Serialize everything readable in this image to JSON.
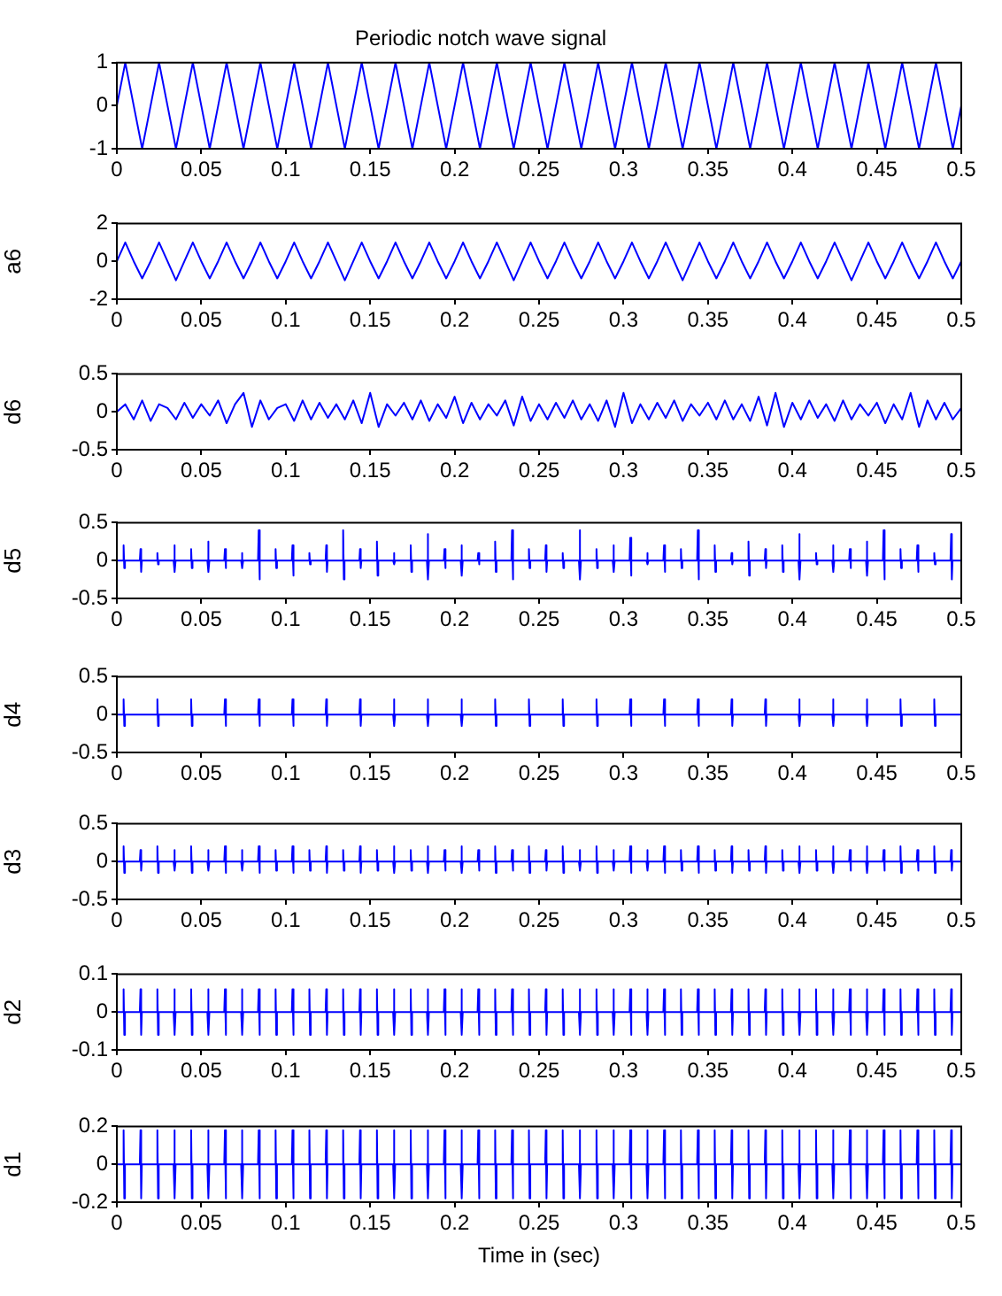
{
  "chart_data": [
    {
      "type": "line",
      "title": "Periodic notch wave signal",
      "color": "#0000ff",
      "xlim": [
        0,
        0.5
      ],
      "xticks": [
        0,
        0.05,
        0.1,
        0.15,
        0.2,
        0.25,
        0.3,
        0.35,
        0.4,
        0.45,
        0.5
      ],
      "ylim": [
        -1,
        1
      ],
      "yticks": [
        -1,
        0,
        1
      ],
      "x": [
        0,
        0.005,
        0.01,
        0.015,
        0.02,
        0.025,
        0.03,
        0.035,
        0.04,
        0.045,
        0.05,
        0.055,
        0.06,
        0.065,
        0.07,
        0.075,
        0.08,
        0.085,
        0.09,
        0.095,
        0.1,
        0.105,
        0.11,
        0.115,
        0.12,
        0.125,
        0.13,
        0.135,
        0.14,
        0.145,
        0.15,
        0.155,
        0.16,
        0.165,
        0.17,
        0.175,
        0.18,
        0.185,
        0.19,
        0.195,
        0.2,
        0.205,
        0.21,
        0.215,
        0.22,
        0.225,
        0.23,
        0.235,
        0.24,
        0.245,
        0.25,
        0.255,
        0.26,
        0.265,
        0.27,
        0.275,
        0.28,
        0.285,
        0.29,
        0.295,
        0.3,
        0.305,
        0.31,
        0.315,
        0.32,
        0.325,
        0.33,
        0.335,
        0.34,
        0.345,
        0.35,
        0.355,
        0.36,
        0.365,
        0.37,
        0.375,
        0.38,
        0.385,
        0.39,
        0.395,
        0.4,
        0.405,
        0.41,
        0.415,
        0.42,
        0.425,
        0.43,
        0.435,
        0.44,
        0.445,
        0.45,
        0.455,
        0.46,
        0.465,
        0.47,
        0.475,
        0.48,
        0.485,
        0.49,
        0.495,
        0.5
      ],
      "values": [
        0,
        1,
        0,
        -1,
        0,
        1,
        0,
        -1,
        0,
        1,
        0,
        -1,
        0,
        1,
        0,
        -1,
        0,
        1,
        0,
        -1,
        0,
        1,
        0,
        -1,
        0,
        1,
        0,
        -1,
        0,
        1,
        0,
        -1,
        0,
        1,
        0,
        -1,
        0,
        1,
        0,
        -1,
        0,
        1,
        0,
        -1,
        0,
        1,
        0,
        -1,
        0,
        1,
        0,
        -1,
        0,
        1,
        0,
        -1,
        0,
        1,
        0,
        -1,
        0,
        1,
        0,
        -1,
        0,
        1,
        0,
        -1,
        0,
        1,
        0,
        -1,
        0,
        1,
        0,
        -1,
        0,
        1,
        0,
        -1,
        0,
        1,
        0,
        -1,
        0,
        1,
        0,
        -1,
        0,
        1,
        0,
        -1,
        0,
        1,
        0,
        -1,
        0,
        1,
        0,
        -1,
        0
      ]
    },
    {
      "type": "line",
      "ylabel": "a6",
      "color": "#0000ff",
      "xlim": [
        0,
        0.5
      ],
      "xticks": [
        0,
        0.05,
        0.1,
        0.15,
        0.2,
        0.25,
        0.3,
        0.35,
        0.4,
        0.45,
        0.5
      ],
      "ylim": [
        -2,
        2
      ],
      "yticks": [
        -2,
        0,
        2
      ],
      "x": [
        0,
        0.005,
        0.01,
        0.015,
        0.02,
        0.025,
        0.03,
        0.035,
        0.04,
        0.045,
        0.05,
        0.055,
        0.06,
        0.065,
        0.07,
        0.075,
        0.08,
        0.085,
        0.09,
        0.095,
        0.1,
        0.105,
        0.11,
        0.115,
        0.12,
        0.125,
        0.13,
        0.135,
        0.14,
        0.145,
        0.15,
        0.155,
        0.16,
        0.165,
        0.17,
        0.175,
        0.18,
        0.185,
        0.19,
        0.195,
        0.2,
        0.205,
        0.21,
        0.215,
        0.22,
        0.225,
        0.23,
        0.235,
        0.24,
        0.245,
        0.25,
        0.255,
        0.26,
        0.265,
        0.27,
        0.275,
        0.28,
        0.285,
        0.29,
        0.295,
        0.3,
        0.305,
        0.31,
        0.315,
        0.32,
        0.325,
        0.33,
        0.335,
        0.34,
        0.345,
        0.35,
        0.355,
        0.36,
        0.365,
        0.37,
        0.375,
        0.38,
        0.385,
        0.39,
        0.395,
        0.4,
        0.405,
        0.41,
        0.415,
        0.42,
        0.425,
        0.43,
        0.435,
        0.44,
        0.445,
        0.45,
        0.455,
        0.46,
        0.465,
        0.47,
        0.475,
        0.48,
        0.485,
        0.49,
        0.495,
        0.5
      ],
      "values": [
        0,
        1,
        0,
        -0.9,
        0,
        1,
        0,
        -1,
        0,
        1,
        0,
        -0.9,
        0,
        1,
        0,
        -0.9,
        0,
        1,
        0,
        -0.9,
        0,
        1,
        0,
        -0.9,
        0,
        1,
        0,
        -1,
        0,
        1,
        0,
        -0.9,
        0,
        1,
        0,
        -0.9,
        0,
        1,
        0,
        -0.9,
        0,
        1,
        0,
        -0.9,
        0,
        1,
        0,
        -1,
        0,
        1,
        0,
        -0.9,
        0,
        1,
        0,
        -0.9,
        0,
        1,
        0,
        -0.9,
        0,
        1,
        0,
        -0.9,
        0,
        1,
        0,
        -1,
        0,
        1,
        0,
        -0.9,
        0,
        1,
        0,
        -0.9,
        0,
        1,
        0,
        -0.9,
        0,
        1,
        0,
        -0.9,
        0,
        1,
        0,
        -1,
        0,
        1,
        0,
        -0.9,
        0,
        1,
        0,
        -0.9,
        0,
        1,
        0,
        -0.9,
        0
      ]
    },
    {
      "type": "line",
      "ylabel": "d6",
      "color": "#0000ff",
      "xlim": [
        0,
        0.5
      ],
      "xticks": [
        0,
        0.05,
        0.1,
        0.15,
        0.2,
        0.25,
        0.3,
        0.35,
        0.4,
        0.45,
        0.5
      ],
      "ylim": [
        -0.5,
        0.5
      ],
      "yticks": [
        -0.5,
        0,
        0.5
      ],
      "x": [
        0,
        0.005,
        0.01,
        0.015,
        0.02,
        0.025,
        0.03,
        0.035,
        0.04,
        0.045,
        0.05,
        0.055,
        0.06,
        0.065,
        0.07,
        0.075,
        0.08,
        0.085,
        0.09,
        0.095,
        0.1,
        0.105,
        0.11,
        0.115,
        0.12,
        0.125,
        0.13,
        0.135,
        0.14,
        0.145,
        0.15,
        0.155,
        0.16,
        0.165,
        0.17,
        0.175,
        0.18,
        0.185,
        0.19,
        0.195,
        0.2,
        0.205,
        0.21,
        0.215,
        0.22,
        0.225,
        0.23,
        0.235,
        0.24,
        0.245,
        0.25,
        0.255,
        0.26,
        0.265,
        0.27,
        0.275,
        0.28,
        0.285,
        0.29,
        0.295,
        0.3,
        0.305,
        0.31,
        0.315,
        0.32,
        0.325,
        0.33,
        0.335,
        0.34,
        0.345,
        0.35,
        0.355,
        0.36,
        0.365,
        0.37,
        0.375,
        0.38,
        0.385,
        0.39,
        0.395,
        0.4,
        0.405,
        0.41,
        0.415,
        0.42,
        0.425,
        0.43,
        0.435,
        0.44,
        0.445,
        0.45,
        0.455,
        0.46,
        0.465,
        0.47,
        0.475,
        0.48,
        0.485,
        0.49,
        0.495,
        0.5
      ],
      "values": [
        0,
        0.1,
        -0.1,
        0.15,
        -0.12,
        0.1,
        0.05,
        -0.1,
        0.12,
        -0.08,
        0.1,
        -0.05,
        0.15,
        -0.15,
        0.1,
        0.25,
        -0.2,
        0.15,
        -0.1,
        0.05,
        0.1,
        -0.12,
        0.15,
        -0.1,
        0.12,
        -0.08,
        0.1,
        -0.1,
        0.15,
        -0.15,
        0.25,
        -0.2,
        0.1,
        -0.05,
        0.12,
        -0.1,
        0.15,
        -0.12,
        0.1,
        -0.08,
        0.2,
        -0.15,
        0.12,
        -0.1,
        0.1,
        -0.05,
        0.15,
        -0.18,
        0.2,
        -0.12,
        0.1,
        -0.1,
        0.12,
        -0.08,
        0.15,
        -0.1,
        0.1,
        -0.12,
        0.15,
        -0.2,
        0.25,
        -0.15,
        0.1,
        -0.1,
        0.12,
        -0.08,
        0.15,
        -0.12,
        0.1,
        -0.05,
        0.12,
        -0.1,
        0.15,
        -0.1,
        0.1,
        -0.12,
        0.2,
        -0.18,
        0.25,
        -0.2,
        0.12,
        -0.1,
        0.15,
        -0.08,
        0.1,
        -0.12,
        0.15,
        -0.1,
        0.1,
        -0.05,
        0.12,
        -0.15,
        0.1,
        -0.1,
        0.25,
        -0.2,
        0.15,
        -0.1,
        0.12,
        -0.1,
        0.05
      ]
    },
    {
      "type": "line",
      "ylabel": "d5",
      "color": "#0000ff",
      "xlim": [
        0,
        0.5
      ],
      "xticks": [
        0,
        0.05,
        0.1,
        0.15,
        0.2,
        0.25,
        0.3,
        0.35,
        0.4,
        0.45,
        0.5
      ],
      "ylim": [
        -0.5,
        0.5
      ],
      "yticks": [
        -0.5,
        0,
        0.5
      ],
      "x": [
        0,
        0.0036,
        0.004,
        0.0044,
        0.0048,
        0.0136,
        0.014,
        0.0144,
        0.0148,
        0.0236,
        0.024,
        0.0244,
        0.0248,
        0.0336,
        0.034,
        0.0344,
        0.0348,
        0.0436,
        0.044,
        0.0444,
        0.0448,
        0.0536,
        0.054,
        0.0544,
        0.0548,
        0.0636,
        0.064,
        0.0644,
        0.0648,
        0.0736,
        0.074,
        0.0744,
        0.0748,
        0.0836,
        0.084,
        0.0844,
        0.0848,
        0.0936,
        0.094,
        0.0944,
        0.0948,
        0.1036,
        0.104,
        0.1044,
        0.1048,
        0.1136,
        0.114,
        0.1144,
        0.1148,
        0.1236,
        0.124,
        0.1244,
        0.1248,
        0.1336,
        0.134,
        0.1344,
        0.1348,
        0.1436,
        0.144,
        0.1444,
        0.1448,
        0.1536,
        0.154,
        0.1544,
        0.1548,
        0.1636,
        0.164,
        0.1644,
        0.1648,
        0.1736,
        0.174,
        0.1744,
        0.1748,
        0.1836,
        0.184,
        0.1844,
        0.1848,
        0.1936,
        0.194,
        0.1944,
        0.1948,
        0.2036,
        0.204,
        0.2044,
        0.2048,
        0.2136,
        0.214,
        0.2144,
        0.2148,
        0.2236,
        0.224,
        0.2244,
        0.2248,
        0.2336,
        0.234,
        0.2344,
        0.2348,
        0.2436,
        0.244,
        0.2444,
        0.2448,
        0.2536,
        0.254,
        0.2544,
        0.2548,
        0.2636,
        0.264,
        0.2644,
        0.2648,
        0.2736,
        0.274,
        0.2744,
        0.2748,
        0.2836,
        0.284,
        0.2844,
        0.2848,
        0.2936,
        0.294,
        0.2944,
        0.2948,
        0.3036,
        0.304,
        0.3044,
        0.3048,
        0.3136,
        0.314,
        0.3144,
        0.3148,
        0.3236,
        0.324,
        0.3244,
        0.3248,
        0.3336,
        0.334,
        0.3344,
        0.3348,
        0.3436,
        0.344,
        0.3444,
        0.3448,
        0.3536,
        0.354,
        0.3544,
        0.3548,
        0.3636,
        0.364,
        0.3644,
        0.3648,
        0.3736,
        0.374,
        0.3744,
        0.3748,
        0.3836,
        0.384,
        0.3844,
        0.3848,
        0.3936,
        0.394,
        0.3944,
        0.3948,
        0.4036,
        0.404,
        0.4044,
        0.4048,
        0.4136,
        0.414,
        0.4144,
        0.4148,
        0.4236,
        0.424,
        0.4244,
        0.4248,
        0.4336,
        0.434,
        0.4344,
        0.4348,
        0.4436,
        0.444,
        0.4444,
        0.4448,
        0.4536,
        0.454,
        0.4544,
        0.4548,
        0.4636,
        0.464,
        0.4644,
        0.4648,
        0.4736,
        0.474,
        0.4744,
        0.4748,
        0.4836,
        0.484,
        0.4844,
        0.4848,
        0.4936,
        0.494,
        0.4944,
        0.4948,
        0.5
      ],
      "values": [
        0,
        0,
        0.2,
        -0.1,
        0,
        0,
        0.15,
        -0.15,
        0,
        0,
        0.1,
        -0.05,
        0,
        0,
        0.2,
        -0.15,
        0,
        0,
        0.15,
        -0.1,
        0,
        0,
        0.25,
        -0.15,
        0,
        0,
        0.15,
        -0.1,
        0,
        0,
        0.1,
        -0.1,
        0,
        0,
        0.4,
        -0.25,
        0,
        0,
        0.15,
        -0.1,
        0,
        0,
        0.2,
        -0.2,
        0,
        0,
        0.1,
        -0.05,
        0,
        0,
        0.2,
        -0.15,
        0,
        0,
        0.4,
        -0.25,
        0,
        0,
        0.15,
        -0.1,
        0,
        0,
        0.25,
        -0.2,
        0,
        0,
        0.1,
        -0.05,
        0,
        0,
        0.2,
        -0.15,
        0,
        0,
        0.35,
        -0.25,
        0,
        0,
        0.15,
        -0.1,
        0,
        0,
        0.2,
        -0.2,
        0,
        0,
        0.1,
        -0.05,
        0,
        0,
        0.25,
        -0.15,
        0,
        0,
        0.4,
        -0.25,
        0,
        0,
        0.15,
        -0.1,
        0,
        0,
        0.2,
        -0.15,
        0,
        0,
        0.1,
        -0.1,
        0,
        0,
        0.4,
        -0.25,
        0,
        0,
        0.15,
        -0.1,
        0,
        0,
        0.2,
        -0.15,
        0,
        0,
        0.3,
        -0.2,
        0,
        0,
        0.1,
        -0.05,
        0,
        0,
        0.2,
        -0.15,
        0,
        0,
        0.15,
        -0.1,
        0,
        0,
        0.4,
        -0.25,
        0,
        0,
        0.2,
        -0.15,
        0,
        0,
        0.1,
        -0.05,
        0,
        0,
        0.25,
        -0.2,
        0,
        0,
        0.15,
        -0.1,
        0,
        0,
        0.2,
        -0.15,
        0,
        0,
        0.35,
        -0.25,
        0,
        0,
        0.1,
        -0.05,
        0,
        0,
        0.2,
        -0.15,
        0,
        0,
        0.15,
        -0.1,
        0,
        0,
        0.25,
        -0.2,
        0,
        0,
        0.4,
        -0.25,
        0,
        0,
        0.15,
        -0.1,
        0,
        0,
        0.2,
        -0.15,
        0,
        0,
        0.1,
        -0.05,
        0,
        0,
        0.35,
        -0.25,
        0,
        0
      ]
    },
    {
      "type": "line",
      "ylabel": "d4",
      "color": "#0000ff",
      "xlim": [
        0,
        0.5
      ],
      "xticks": [
        0,
        0.05,
        0.1,
        0.15,
        0.2,
        0.25,
        0.3,
        0.35,
        0.4,
        0.45,
        0.5
      ],
      "ylim": [
        -0.5,
        0.5
      ],
      "yticks": [
        -0.5,
        0,
        0.5
      ],
      "x": [
        0,
        0.0036,
        0.004,
        0.0044,
        0.0048,
        0.0236,
        0.024,
        0.0244,
        0.0248,
        0.0436,
        0.044,
        0.0444,
        0.0448,
        0.0636,
        0.064,
        0.0644,
        0.0648,
        0.0836,
        0.084,
        0.0844,
        0.0848,
        0.1036,
        0.104,
        0.1044,
        0.1048,
        0.1236,
        0.124,
        0.1244,
        0.1248,
        0.1436,
        0.144,
        0.1444,
        0.1448,
        0.1636,
        0.164,
        0.1644,
        0.1648,
        0.1836,
        0.184,
        0.1844,
        0.1848,
        0.2036,
        0.204,
        0.2044,
        0.2048,
        0.2236,
        0.224,
        0.2244,
        0.2248,
        0.2436,
        0.244,
        0.2444,
        0.2448,
        0.2636,
        0.264,
        0.2644,
        0.2648,
        0.2836,
        0.284,
        0.2844,
        0.2848,
        0.3036,
        0.304,
        0.3044,
        0.3048,
        0.3236,
        0.324,
        0.3244,
        0.3248,
        0.3436,
        0.344,
        0.3444,
        0.3448,
        0.3636,
        0.364,
        0.3644,
        0.3648,
        0.3836,
        0.384,
        0.3844,
        0.3848,
        0.4036,
        0.404,
        0.4044,
        0.4048,
        0.4236,
        0.424,
        0.4244,
        0.4248,
        0.4436,
        0.444,
        0.4444,
        0.4448,
        0.4636,
        0.464,
        0.4644,
        0.4648,
        0.4836,
        0.484,
        0.4844,
        0.4848,
        0.5
      ],
      "values": [
        0,
        0,
        0.2,
        -0.15,
        0,
        0,
        0.2,
        -0.15,
        0,
        0,
        0.2,
        -0.15,
        0,
        0,
        0.2,
        -0.15,
        0,
        0,
        0.2,
        -0.15,
        0,
        0,
        0.2,
        -0.15,
        0,
        0,
        0.2,
        -0.15,
        0,
        0,
        0.2,
        -0.15,
        0,
        0,
        0.2,
        -0.15,
        0,
        0,
        0.2,
        -0.15,
        0,
        0,
        0.2,
        -0.15,
        0,
        0,
        0.2,
        -0.15,
        0,
        0,
        0.2,
        -0.15,
        0,
        0,
        0.2,
        -0.15,
        0,
        0,
        0.2,
        -0.15,
        0,
        0,
        0.2,
        -0.15,
        0,
        0,
        0.2,
        -0.15,
        0,
        0,
        0.2,
        -0.15,
        0,
        0,
        0.2,
        -0.15,
        0,
        0,
        0.2,
        -0.15,
        0,
        0,
        0.2,
        -0.15,
        0,
        0,
        0.2,
        -0.15,
        0,
        0,
        0.2,
        -0.15,
        0,
        0,
        0.2,
        -0.15,
        0,
        0,
        0.2,
        -0.15,
        0,
        0
      ]
    },
    {
      "type": "line",
      "ylabel": "d3",
      "color": "#0000ff",
      "xlim": [
        0,
        0.5
      ],
      "xticks": [
        0,
        0.05,
        0.1,
        0.15,
        0.2,
        0.25,
        0.3,
        0.35,
        0.4,
        0.45,
        0.5
      ],
      "ylim": [
        -0.5,
        0.5
      ],
      "yticks": [
        -0.5,
        0,
        0.5
      ],
      "x": [
        0,
        0.0036,
        0.004,
        0.0044,
        0.0048,
        0.0136,
        0.014,
        0.0144,
        0.0148,
        0.0236,
        0.024,
        0.0244,
        0.0248,
        0.0336,
        0.034,
        0.0344,
        0.0348,
        0.0436,
        0.044,
        0.0444,
        0.0448,
        0.0536,
        0.054,
        0.0544,
        0.0548,
        0.0636,
        0.064,
        0.0644,
        0.0648,
        0.0736,
        0.074,
        0.0744,
        0.0748,
        0.0836,
        0.084,
        0.0844,
        0.0848,
        0.0936,
        0.094,
        0.0944,
        0.0948,
        0.1036,
        0.104,
        0.1044,
        0.1048,
        0.1136,
        0.114,
        0.1144,
        0.1148,
        0.1236,
        0.124,
        0.1244,
        0.1248,
        0.1336,
        0.134,
        0.1344,
        0.1348,
        0.1436,
        0.144,
        0.1444,
        0.1448,
        0.1536,
        0.154,
        0.1544,
        0.1548,
        0.1636,
        0.164,
        0.1644,
        0.1648,
        0.1736,
        0.174,
        0.1744,
        0.1748,
        0.1836,
        0.184,
        0.1844,
        0.1848,
        0.1936,
        0.194,
        0.1944,
        0.1948,
        0.2036,
        0.204,
        0.2044,
        0.2048,
        0.2136,
        0.214,
        0.2144,
        0.2148,
        0.2236,
        0.224,
        0.2244,
        0.2248,
        0.2336,
        0.234,
        0.2344,
        0.2348,
        0.2436,
        0.244,
        0.2444,
        0.2448,
        0.2536,
        0.254,
        0.2544,
        0.2548,
        0.2636,
        0.264,
        0.2644,
        0.2648,
        0.2736,
        0.274,
        0.2744,
        0.2748,
        0.2836,
        0.284,
        0.2844,
        0.2848,
        0.2936,
        0.294,
        0.2944,
        0.2948,
        0.3036,
        0.304,
        0.3044,
        0.3048,
        0.3136,
        0.314,
        0.3144,
        0.3148,
        0.3236,
        0.324,
        0.3244,
        0.3248,
        0.3336,
        0.334,
        0.3344,
        0.3348,
        0.3436,
        0.344,
        0.3444,
        0.3448,
        0.3536,
        0.354,
        0.3544,
        0.3548,
        0.3636,
        0.364,
        0.3644,
        0.3648,
        0.3736,
        0.374,
        0.3744,
        0.3748,
        0.3836,
        0.384,
        0.3844,
        0.3848,
        0.3936,
        0.394,
        0.3944,
        0.3948,
        0.4036,
        0.404,
        0.4044,
        0.4048,
        0.4136,
        0.414,
        0.4144,
        0.4148,
        0.4236,
        0.424,
        0.4244,
        0.4248,
        0.4336,
        0.434,
        0.4344,
        0.4348,
        0.4436,
        0.444,
        0.4444,
        0.4448,
        0.4536,
        0.454,
        0.4544,
        0.4548,
        0.4636,
        0.464,
        0.4644,
        0.4648,
        0.4736,
        0.474,
        0.4744,
        0.4748,
        0.4836,
        0.484,
        0.4844,
        0.4848,
        0.4936,
        0.494,
        0.4944,
        0.4948,
        0.5
      ],
      "values": [
        0,
        0,
        0.2,
        -0.15,
        0,
        0,
        0.15,
        -0.12,
        0,
        0,
        0.2,
        -0.15,
        0,
        0,
        0.15,
        -0.12,
        0,
        0,
        0.2,
        -0.15,
        0,
        0,
        0.15,
        -0.12,
        0,
        0,
        0.2,
        -0.15,
        0,
        0,
        0.15,
        -0.12,
        0,
        0,
        0.2,
        -0.15,
        0,
        0,
        0.15,
        -0.12,
        0,
        0,
        0.2,
        -0.15,
        0,
        0,
        0.15,
        -0.12,
        0,
        0,
        0.2,
        -0.15,
        0,
        0,
        0.15,
        -0.12,
        0,
        0,
        0.2,
        -0.15,
        0,
        0,
        0.15,
        -0.12,
        0,
        0,
        0.2,
        -0.15,
        0,
        0,
        0.15,
        -0.12,
        0,
        0,
        0.2,
        -0.15,
        0,
        0,
        0.15,
        -0.12,
        0,
        0,
        0.2,
        -0.15,
        0,
        0,
        0.15,
        -0.12,
        0,
        0,
        0.2,
        -0.15,
        0,
        0,
        0.15,
        -0.12,
        0,
        0,
        0.2,
        -0.15,
        0,
        0,
        0.15,
        -0.12,
        0,
        0,
        0.2,
        -0.15,
        0,
        0,
        0.15,
        -0.12,
        0,
        0,
        0.2,
        -0.15,
        0,
        0,
        0.15,
        -0.12,
        0,
        0,
        0.2,
        -0.15,
        0,
        0,
        0.15,
        -0.12,
        0,
        0,
        0.2,
        -0.15,
        0,
        0,
        0.15,
        -0.12,
        0,
        0,
        0.2,
        -0.15,
        0,
        0,
        0.15,
        -0.12,
        0,
        0,
        0.2,
        -0.15,
        0,
        0,
        0.15,
        -0.12,
        0,
        0,
        0.2,
        -0.15,
        0,
        0,
        0.15,
        -0.12,
        0,
        0,
        0.2,
        -0.15,
        0,
        0,
        0.15,
        -0.12,
        0,
        0,
        0.2,
        -0.15,
        0,
        0,
        0.15,
        -0.12,
        0,
        0,
        0.2,
        -0.15,
        0,
        0,
        0.15,
        -0.12,
        0,
        0,
        0.2,
        -0.15,
        0,
        0,
        0.15,
        -0.12,
        0,
        0,
        0.2,
        -0.15,
        0,
        0,
        0.15,
        -0.12,
        0,
        0
      ]
    },
    {
      "type": "line",
      "ylabel": "d2",
      "color": "#0000ff",
      "xlim": [
        0,
        0.5
      ],
      "xticks": [
        0,
        0.05,
        0.1,
        0.15,
        0.2,
        0.25,
        0.3,
        0.35,
        0.4,
        0.45,
        0.5
      ],
      "ylim": [
        -0.1,
        0.1
      ],
      "yticks": [
        -0.1,
        0,
        0.1
      ],
      "x": [
        0,
        0.0036,
        0.004,
        0.0044,
        0.0048,
        0.0136,
        0.014,
        0.0144,
        0.0148,
        0.0236,
        0.024,
        0.0244,
        0.0248,
        0.0336,
        0.034,
        0.0344,
        0.0348,
        0.0436,
        0.044,
        0.0444,
        0.0448,
        0.0536,
        0.054,
        0.0544,
        0.0548,
        0.0636,
        0.064,
        0.0644,
        0.0648,
        0.0736,
        0.074,
        0.0744,
        0.0748,
        0.0836,
        0.084,
        0.0844,
        0.0848,
        0.0936,
        0.094,
        0.0944,
        0.0948,
        0.1036,
        0.104,
        0.1044,
        0.1048,
        0.1136,
        0.114,
        0.1144,
        0.1148,
        0.1236,
        0.124,
        0.1244,
        0.1248,
        0.1336,
        0.134,
        0.1344,
        0.1348,
        0.1436,
        0.144,
        0.1444,
        0.1448,
        0.1536,
        0.154,
        0.1544,
        0.1548,
        0.1636,
        0.164,
        0.1644,
        0.1648,
        0.1736,
        0.174,
        0.1744,
        0.1748,
        0.1836,
        0.184,
        0.1844,
        0.1848,
        0.1936,
        0.194,
        0.1944,
        0.1948,
        0.2036,
        0.204,
        0.2044,
        0.2048,
        0.2136,
        0.214,
        0.2144,
        0.2148,
        0.2236,
        0.224,
        0.2244,
        0.2248,
        0.2336,
        0.234,
        0.2344,
        0.2348,
        0.2436,
        0.244,
        0.2444,
        0.2448,
        0.2536,
        0.254,
        0.2544,
        0.2548,
        0.2636,
        0.264,
        0.2644,
        0.2648,
        0.2736,
        0.274,
        0.2744,
        0.2748,
        0.2836,
        0.284,
        0.2844,
        0.2848,
        0.2936,
        0.294,
        0.2944,
        0.2948,
        0.3036,
        0.304,
        0.3044,
        0.3048,
        0.3136,
        0.314,
        0.3144,
        0.3148,
        0.3236,
        0.324,
        0.3244,
        0.3248,
        0.3336,
        0.334,
        0.3344,
        0.3348,
        0.3436,
        0.344,
        0.3444,
        0.3448,
        0.3536,
        0.354,
        0.3544,
        0.3548,
        0.3636,
        0.364,
        0.3644,
        0.3648,
        0.3736,
        0.374,
        0.3744,
        0.3748,
        0.3836,
        0.384,
        0.3844,
        0.3848,
        0.3936,
        0.394,
        0.3944,
        0.3948,
        0.4036,
        0.404,
        0.4044,
        0.4048,
        0.4136,
        0.414,
        0.4144,
        0.4148,
        0.4236,
        0.424,
        0.4244,
        0.4248,
        0.4336,
        0.434,
        0.4344,
        0.4348,
        0.4436,
        0.444,
        0.4444,
        0.4448,
        0.4536,
        0.454,
        0.4544,
        0.4548,
        0.4636,
        0.464,
        0.4644,
        0.4648,
        0.4736,
        0.474,
        0.4744,
        0.4748,
        0.4836,
        0.484,
        0.4844,
        0.4848,
        0.4936,
        0.494,
        0.4944,
        0.4948,
        0.5
      ],
      "values": [
        0,
        0,
        0.06,
        -0.06,
        0,
        0,
        0.06,
        -0.06,
        0,
        0,
        0.06,
        -0.06,
        0,
        0,
        0.06,
        -0.06,
        0,
        0,
        0.06,
        -0.06,
        0,
        0,
        0.06,
        -0.06,
        0,
        0,
        0.06,
        -0.06,
        0,
        0,
        0.06,
        -0.06,
        0,
        0,
        0.06,
        -0.06,
        0,
        0,
        0.06,
        -0.06,
        0,
        0,
        0.06,
        -0.06,
        0,
        0,
        0.06,
        -0.06,
        0,
        0,
        0.06,
        -0.06,
        0,
        0,
        0.06,
        -0.06,
        0,
        0,
        0.06,
        -0.06,
        0,
        0,
        0.06,
        -0.06,
        0,
        0,
        0.06,
        -0.06,
        0,
        0,
        0.06,
        -0.06,
        0,
        0,
        0.06,
        -0.06,
        0,
        0,
        0.06,
        -0.06,
        0,
        0,
        0.06,
        -0.06,
        0,
        0,
        0.06,
        -0.06,
        0,
        0,
        0.06,
        -0.06,
        0,
        0,
        0.06,
        -0.06,
        0,
        0,
        0.06,
        -0.06,
        0,
        0,
        0.06,
        -0.06,
        0,
        0,
        0.06,
        -0.06,
        0,
        0,
        0.06,
        -0.06,
        0,
        0,
        0.06,
        -0.06,
        0,
        0,
        0.06,
        -0.06,
        0,
        0,
        0.06,
        -0.06,
        0,
        0,
        0.06,
        -0.06,
        0,
        0,
        0.06,
        -0.06,
        0,
        0,
        0.06,
        -0.06,
        0,
        0,
        0.06,
        -0.06,
        0,
        0,
        0.06,
        -0.06,
        0,
        0,
        0.06,
        -0.06,
        0,
        0,
        0.06,
        -0.06,
        0,
        0,
        0.06,
        -0.06,
        0,
        0,
        0.06,
        -0.06,
        0,
        0,
        0.06,
        -0.06,
        0,
        0,
        0.06,
        -0.06,
        0,
        0,
        0.06,
        -0.06,
        0,
        0,
        0.06,
        -0.06,
        0,
        0,
        0.06,
        -0.06,
        0,
        0,
        0.06,
        -0.06,
        0,
        0,
        0.06,
        -0.06,
        0,
        0,
        0.06,
        -0.06,
        0,
        0,
        0.06,
        -0.06,
        0,
        0,
        0.06,
        -0.06,
        0,
        0
      ]
    },
    {
      "type": "line",
      "ylabel": "d1",
      "xlabel": "Time in (sec)",
      "color": "#0000ff",
      "xlim": [
        0,
        0.5
      ],
      "xticks": [
        0,
        0.05,
        0.1,
        0.15,
        0.2,
        0.25,
        0.3,
        0.35,
        0.4,
        0.45,
        0.5
      ],
      "ylim": [
        -0.2,
        0.2
      ],
      "yticks": [
        -0.2,
        0,
        0.2
      ],
      "x": [
        0,
        0.0036,
        0.004,
        0.0044,
        0.0048,
        0.0136,
        0.014,
        0.0144,
        0.0148,
        0.0236,
        0.024,
        0.0244,
        0.0248,
        0.0336,
        0.034,
        0.0344,
        0.0348,
        0.0436,
        0.044,
        0.0444,
        0.0448,
        0.0536,
        0.054,
        0.0544,
        0.0548,
        0.0636,
        0.064,
        0.0644,
        0.0648,
        0.0736,
        0.074,
        0.0744,
        0.0748,
        0.0836,
        0.084,
        0.0844,
        0.0848,
        0.0936,
        0.094,
        0.0944,
        0.0948,
        0.1036,
        0.104,
        0.1044,
        0.1048,
        0.1136,
        0.114,
        0.1144,
        0.1148,
        0.1236,
        0.124,
        0.1244,
        0.1248,
        0.1336,
        0.134,
        0.1344,
        0.1348,
        0.1436,
        0.144,
        0.1444,
        0.1448,
        0.1536,
        0.154,
        0.1544,
        0.1548,
        0.1636,
        0.164,
        0.1644,
        0.1648,
        0.1736,
        0.174,
        0.1744,
        0.1748,
        0.1836,
        0.184,
        0.1844,
        0.1848,
        0.1936,
        0.194,
        0.1944,
        0.1948,
        0.2036,
        0.204,
        0.2044,
        0.2048,
        0.2136,
        0.214,
        0.2144,
        0.2148,
        0.2236,
        0.224,
        0.2244,
        0.2248,
        0.2336,
        0.234,
        0.2344,
        0.2348,
        0.2436,
        0.244,
        0.2444,
        0.2448,
        0.2536,
        0.254,
        0.2544,
        0.2548,
        0.2636,
        0.264,
        0.2644,
        0.2648,
        0.2736,
        0.274,
        0.2744,
        0.2748,
        0.2836,
        0.284,
        0.2844,
        0.2848,
        0.2936,
        0.294,
        0.2944,
        0.2948,
        0.3036,
        0.304,
        0.3044,
        0.3048,
        0.3136,
        0.314,
        0.3144,
        0.3148,
        0.3236,
        0.324,
        0.3244,
        0.3248,
        0.3336,
        0.334,
        0.3344,
        0.3348,
        0.3436,
        0.344,
        0.3444,
        0.3448,
        0.3536,
        0.354,
        0.3544,
        0.3548,
        0.3636,
        0.364,
        0.3644,
        0.3648,
        0.3736,
        0.374,
        0.3744,
        0.3748,
        0.3836,
        0.384,
        0.3844,
        0.3848,
        0.3936,
        0.394,
        0.3944,
        0.3948,
        0.4036,
        0.404,
        0.4044,
        0.4048,
        0.4136,
        0.414,
        0.4144,
        0.4148,
        0.4236,
        0.424,
        0.4244,
        0.4248,
        0.4336,
        0.434,
        0.4344,
        0.4348,
        0.4436,
        0.444,
        0.4444,
        0.4448,
        0.4536,
        0.454,
        0.4544,
        0.4548,
        0.4636,
        0.464,
        0.4644,
        0.4648,
        0.4736,
        0.474,
        0.4744,
        0.4748,
        0.4836,
        0.484,
        0.4844,
        0.4848,
        0.4936,
        0.494,
        0.4944,
        0.4948,
        0.5
      ],
      "values": [
        0,
        0,
        0.18,
        -0.18,
        0,
        0,
        0.18,
        -0.18,
        0,
        0,
        0.18,
        -0.18,
        0,
        0,
        0.18,
        -0.18,
        0,
        0,
        0.18,
        -0.18,
        0,
        0,
        0.18,
        -0.18,
        0,
        0,
        0.18,
        -0.18,
        0,
        0,
        0.18,
        -0.18,
        0,
        0,
        0.18,
        -0.18,
        0,
        0,
        0.18,
        -0.18,
        0,
        0,
        0.18,
        -0.18,
        0,
        0,
        0.18,
        -0.18,
        0,
        0,
        0.18,
        -0.18,
        0,
        0,
        0.18,
        -0.18,
        0,
        0,
        0.18,
        -0.18,
        0,
        0,
        0.18,
        -0.18,
        0,
        0,
        0.18,
        -0.18,
        0,
        0,
        0.18,
        -0.18,
        0,
        0,
        0.18,
        -0.18,
        0,
        0,
        0.18,
        -0.18,
        0,
        0,
        0.18,
        -0.18,
        0,
        0,
        0.18,
        -0.18,
        0,
        0,
        0.18,
        -0.18,
        0,
        0,
        0.18,
        -0.18,
        0,
        0,
        0.18,
        -0.18,
        0,
        0,
        0.18,
        -0.18,
        0,
        0,
        0.18,
        -0.18,
        0,
        0,
        0.18,
        -0.18,
        0,
        0,
        0.18,
        -0.18,
        0,
        0,
        0.18,
        -0.18,
        0,
        0,
        0.18,
        -0.18,
        0,
        0,
        0.18,
        -0.18,
        0,
        0,
        0.18,
        -0.18,
        0,
        0,
        0.18,
        -0.18,
        0,
        0,
        0.18,
        -0.18,
        0,
        0,
        0.18,
        -0.18,
        0,
        0,
        0.18,
        -0.18,
        0,
        0,
        0.18,
        -0.18,
        0,
        0,
        0.18,
        -0.18,
        0,
        0,
        0.18,
        -0.18,
        0,
        0,
        0.18,
        -0.18,
        0,
        0,
        0.18,
        -0.18,
        0,
        0,
        0.18,
        -0.18,
        0,
        0,
        0.18,
        -0.18,
        0,
        0,
        0.18,
        -0.18,
        0,
        0,
        0.18,
        -0.18,
        0,
        0,
        0.18,
        -0.18,
        0,
        0,
        0.18,
        -0.18,
        0,
        0,
        0.18,
        -0.18,
        0,
        0,
        0.18,
        -0.18,
        0,
        0
      ]
    }
  ]
}
